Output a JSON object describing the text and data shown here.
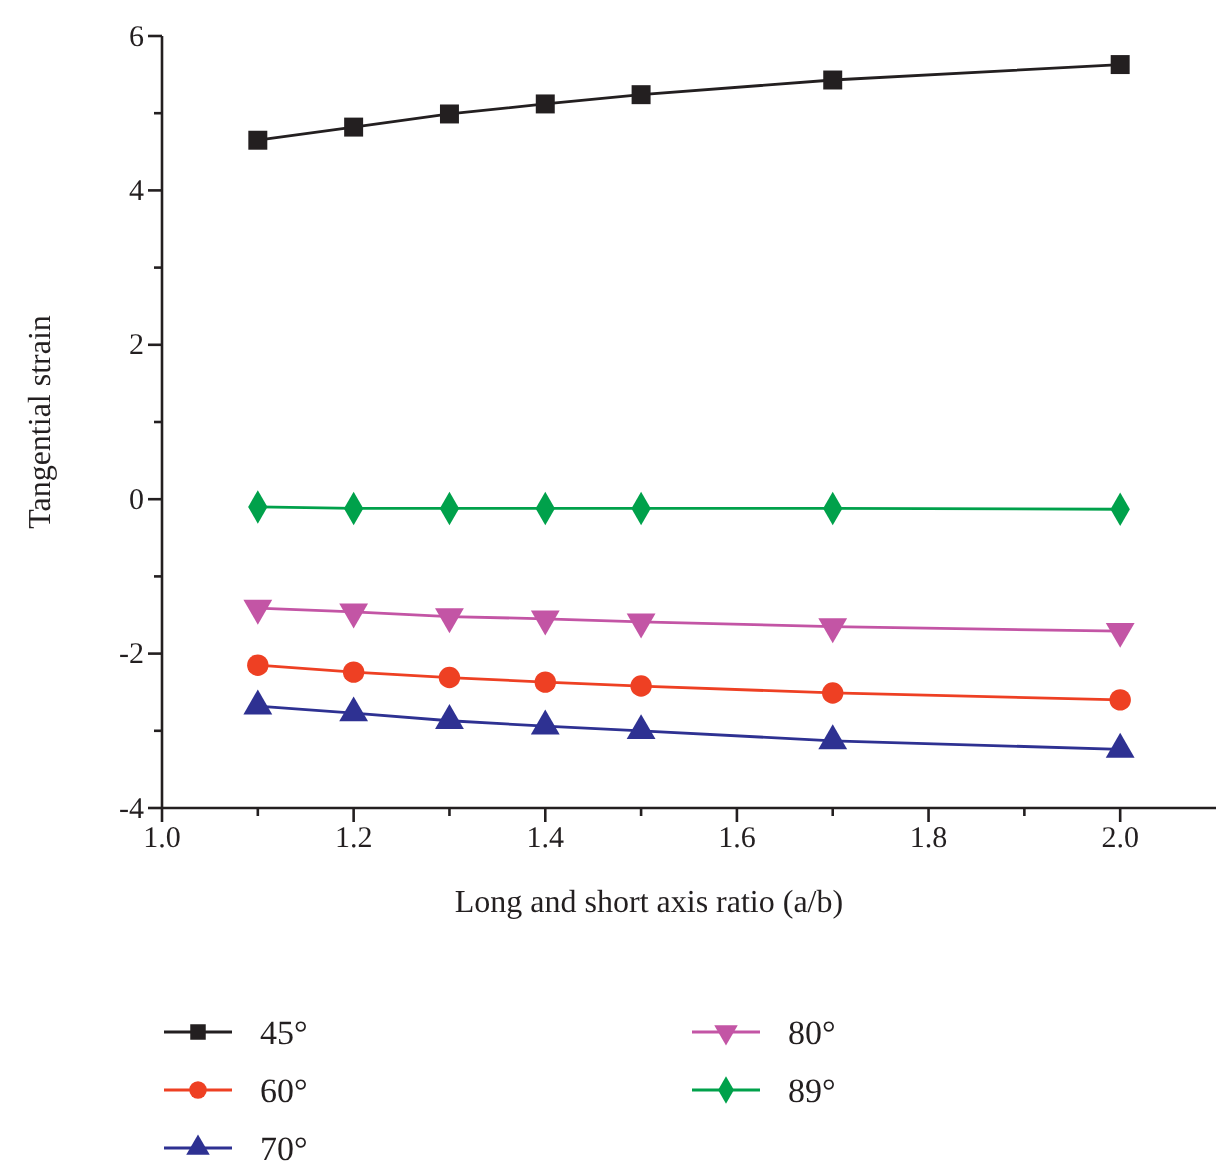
{
  "chart_data": {
    "type": "line",
    "xlabel": "Long and short axis ratio (a/b)",
    "ylabel": "Tangential strain",
    "x": [
      1.1,
      1.2,
      1.3,
      1.4,
      1.5,
      1.7,
      2.0
    ],
    "xlim": [
      1.0,
      2.1
    ],
    "xticks": [
      {
        "value": 1,
        "label": "1.0"
      },
      {
        "value": 1.1,
        "label": null
      },
      1.2,
      {
        "value": 1.3,
        "label": null
      },
      1.4,
      {
        "value": 1.5,
        "label": null
      },
      1.6,
      {
        "value": 1.7,
        "label": null
      },
      1.8,
      {
        "value": 1.9,
        "label": null
      },
      {
        "value": 2,
        "label": "2.0"
      }
    ],
    "ylim": [
      -4,
      6
    ],
    "yticks": [
      -4,
      {
        "value": -3,
        "label": null
      },
      -2,
      {
        "value": -1,
        "label": null
      },
      0,
      {
        "value": 1,
        "label": null
      },
      2,
      {
        "value": 3,
        "label": null
      },
      4,
      {
        "value": 5,
        "label": null
      },
      6
    ],
    "legend": "bottom",
    "grid": false,
    "line_style": "solid",
    "series": [
      {
        "name": "45°",
        "color": "#231f20",
        "marker": "square",
        "values": [
          4.65,
          4.82,
          4.99,
          5.12,
          5.24,
          5.43,
          5.63
        ]
      },
      {
        "name": "60°",
        "color": "#ee4023",
        "marker": "circle",
        "values": [
          -2.15,
          -2.24,
          -2.31,
          -2.37,
          -2.42,
          -2.51,
          -2.6
        ]
      },
      {
        "name": "70°",
        "color": "#2e3192",
        "marker": "triangle",
        "values": [
          -2.68,
          -2.77,
          -2.87,
          -2.94,
          -3.0,
          -3.13,
          -3.24
        ]
      },
      {
        "name": "80°",
        "color": "#c355a5",
        "marker": "triangle-down",
        "values": [
          -1.41,
          -1.46,
          -1.52,
          -1.55,
          -1.59,
          -1.65,
          -1.71
        ]
      },
      {
        "name": "89°",
        "color": "#00a14b",
        "marker": "diamond",
        "values": [
          -0.1,
          -0.12,
          -0.12,
          -0.12,
          -0.12,
          -0.12,
          -0.13
        ]
      }
    ]
  }
}
